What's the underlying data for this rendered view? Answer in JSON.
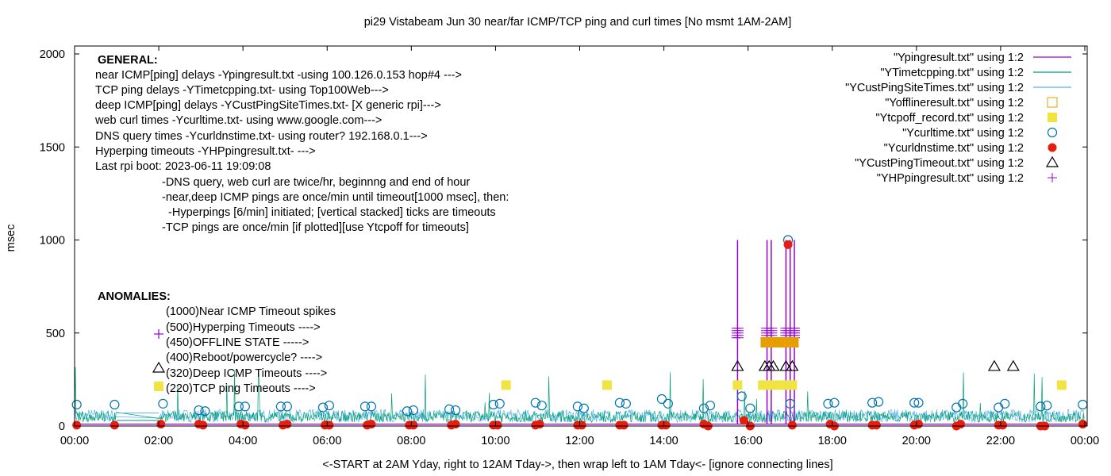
{
  "chart_data": {
    "type": "line",
    "title": "pi29 Vistabeam Jun 30  near/far ICMP/TCP ping and curl times [No msmt 1AM-2AM]",
    "xlabel": "<-START at 2AM Yday, right to 12AM Tday->, then wrap left to 1AM Tday<- [ignore connecting lines]",
    "ylabel": "msec",
    "xlim_hours": [
      0,
      24
    ],
    "ylim": [
      0,
      2000
    ],
    "x_ticks": [
      "00:00",
      "02:00",
      "04:00",
      "06:00",
      "08:00",
      "10:00",
      "12:00",
      "14:00",
      "16:00",
      "18:00",
      "20:00",
      "22:00",
      "00:00"
    ],
    "y_ticks": [
      0,
      500,
      1000,
      1500,
      2000
    ],
    "grid": false,
    "legend_position": "top-right",
    "legend": [
      {
        "label": "\"Ypingresult.txt\" using 1:2",
        "style": "line",
        "color": "#9400d3"
      },
      {
        "label": "\"YTimetcpping.txt\" using 1:2",
        "style": "line",
        "color": "#009e73"
      },
      {
        "label": "\"YCustPingSiteTimes.txt\" using 1:2",
        "style": "line",
        "color": "#56b4e9"
      },
      {
        "label": "\"Yofflineresult.txt\" using 1:2",
        "style": "open-square",
        "color": "#e69f00"
      },
      {
        "label": "\"Ytcpoff_record.txt\" using 1:2",
        "style": "filled-square",
        "color": "#f0e442"
      },
      {
        "label": "\"Ycurltime.txt\" using 1:2",
        "style": "open-circle",
        "color": "#0072b2"
      },
      {
        "label": "\"Ycurldnstime.txt\" using 1:2",
        "style": "filled-circle",
        "color": "#e51e10"
      },
      {
        "label": "\"YCustPingTimeout.txt\" using 1:2",
        "style": "open-triangle",
        "color": "#000000"
      },
      {
        "label": "\"YHPpingresult.txt\" using 1:2",
        "style": "plus",
        "color": "#9400d3"
      }
    ],
    "series": {
      "near_icmp_spikes_1000": [
        15.75,
        16.45,
        16.55,
        16.9,
        17.0,
        17.1
      ],
      "hyperping_timeouts_500": [
        15.72,
        15.78,
        16.42,
        16.5,
        16.58,
        16.88,
        16.95,
        17.08,
        17.12
      ],
      "offline_state_450": [
        16.42,
        16.5,
        16.6,
        16.72,
        16.9,
        17.0,
        17.08
      ],
      "deep_icmp_timeouts_320": [
        15.75,
        16.4,
        16.5,
        16.6,
        16.9,
        17.05,
        21.85,
        22.3
      ],
      "tcp_ping_timeouts_220": [
        10.25,
        12.65,
        15.75,
        16.35,
        16.55,
        16.75,
        16.95,
        17.05,
        23.45
      ],
      "curl_times": [
        {
          "x": 0.05,
          "y": 115
        },
        {
          "x": 0.95,
          "y": 115
        },
        {
          "x": 2.1,
          "y": 120
        },
        {
          "x": 2.95,
          "y": 85
        },
        {
          "x": 3.1,
          "y": 80
        },
        {
          "x": 3.9,
          "y": 105
        },
        {
          "x": 4.05,
          "y": 105
        },
        {
          "x": 4.9,
          "y": 105
        },
        {
          "x": 5.05,
          "y": 105
        },
        {
          "x": 5.9,
          "y": 100
        },
        {
          "x": 6.05,
          "y": 110
        },
        {
          "x": 6.9,
          "y": 105
        },
        {
          "x": 7.05,
          "y": 105
        },
        {
          "x": 7.9,
          "y": 80
        },
        {
          "x": 8.05,
          "y": 85
        },
        {
          "x": 8.9,
          "y": 90
        },
        {
          "x": 9.05,
          "y": 85
        },
        {
          "x": 9.95,
          "y": 115
        },
        {
          "x": 10.1,
          "y": 120
        },
        {
          "x": 10.95,
          "y": 125
        },
        {
          "x": 11.1,
          "y": 110
        },
        {
          "x": 11.95,
          "y": 105
        },
        {
          "x": 12.1,
          "y": 95
        },
        {
          "x": 12.95,
          "y": 125
        },
        {
          "x": 13.1,
          "y": 120
        },
        {
          "x": 13.95,
          "y": 145
        },
        {
          "x": 14.1,
          "y": 120
        },
        {
          "x": 14.95,
          "y": 95
        },
        {
          "x": 15.1,
          "y": 110
        },
        {
          "x": 15.85,
          "y": 160
        },
        {
          "x": 16.05,
          "y": 95
        },
        {
          "x": 17.0,
          "y": 120
        },
        {
          "x": 16.95,
          "y": 1000
        },
        {
          "x": 17.9,
          "y": 120
        },
        {
          "x": 18.05,
          "y": 125
        },
        {
          "x": 18.95,
          "y": 125
        },
        {
          "x": 19.1,
          "y": 130
        },
        {
          "x": 19.95,
          "y": 125
        },
        {
          "x": 20.05,
          "y": 125
        },
        {
          "x": 20.95,
          "y": 100
        },
        {
          "x": 21.1,
          "y": 120
        },
        {
          "x": 21.95,
          "y": 100
        },
        {
          "x": 22.1,
          "y": 120
        },
        {
          "x": 22.95,
          "y": 105
        },
        {
          "x": 23.1,
          "y": 110
        },
        {
          "x": 23.95,
          "y": 115
        }
      ],
      "dns_times": [
        {
          "x": 0.05,
          "y": 5
        },
        {
          "x": 0.95,
          "y": 5
        },
        {
          "x": 2.05,
          "y": 10
        },
        {
          "x": 2.95,
          "y": 10
        },
        {
          "x": 3.05,
          "y": 5
        },
        {
          "x": 3.95,
          "y": 10
        },
        {
          "x": 4.05,
          "y": 5
        },
        {
          "x": 4.95,
          "y": 5
        },
        {
          "x": 5.05,
          "y": 10
        },
        {
          "x": 5.95,
          "y": 5
        },
        {
          "x": 6.05,
          "y": 5
        },
        {
          "x": 6.95,
          "y": 5
        },
        {
          "x": 7.05,
          "y": 10
        },
        {
          "x": 7.95,
          "y": 5
        },
        {
          "x": 8.05,
          "y": 5
        },
        {
          "x": 8.95,
          "y": 5
        },
        {
          "x": 9.05,
          "y": 10
        },
        {
          "x": 9.95,
          "y": 5
        },
        {
          "x": 10.05,
          "y": 5
        },
        {
          "x": 10.95,
          "y": 5
        },
        {
          "x": 11.05,
          "y": 10
        },
        {
          "x": 11.95,
          "y": 5
        },
        {
          "x": 12.05,
          "y": 5
        },
        {
          "x": 12.95,
          "y": 5
        },
        {
          "x": 13.05,
          "y": 5
        },
        {
          "x": 13.95,
          "y": 5
        },
        {
          "x": 14.05,
          "y": 5
        },
        {
          "x": 14.95,
          "y": 10
        },
        {
          "x": 15.05,
          "y": 0
        },
        {
          "x": 15.9,
          "y": 30
        },
        {
          "x": 16.05,
          "y": 0
        },
        {
          "x": 16.95,
          "y": 975
        },
        {
          "x": 17.05,
          "y": 5
        },
        {
          "x": 17.95,
          "y": 10
        },
        {
          "x": 18.05,
          "y": 0
        },
        {
          "x": 18.95,
          "y": 5
        },
        {
          "x": 19.05,
          "y": 5
        },
        {
          "x": 19.95,
          "y": 5
        },
        {
          "x": 20.05,
          "y": 10
        },
        {
          "x": 20.95,
          "y": 0
        },
        {
          "x": 21.05,
          "y": 10
        },
        {
          "x": 21.95,
          "y": 5
        },
        {
          "x": 22.05,
          "y": 5
        },
        {
          "x": 22.95,
          "y": 0
        },
        {
          "x": 23.05,
          "y": 0
        },
        {
          "x": 23.95,
          "y": 10
        }
      ],
      "near_icmp_baseline_msec": 10,
      "tcp_ping_typical_msec_range": [
        20,
        80
      ],
      "deep_icmp_typical_msec_range": [
        20,
        90
      ]
    }
  },
  "annotations": {
    "general_heading": "GENERAL:",
    "general_lines": [
      "near ICMP[ping] delays -Ypingresult.txt -using 100.126.0.153 hop#4 --->",
      "TCP ping delays -YTimetcpping.txt- using Top100Web--->",
      "deep ICMP[ping] delays -YCustPingSiteTimes.txt- [X generic rpi]--->",
      "web curl times -Ycurltime.txt- using www.google.com--->",
      "DNS query times -Ycurldnstime.txt- using router? 192.168.0.1--->",
      "Hyperping timeouts -YHPpingresult.txt- --->",
      "Last rpi boot: 2023-06-11 19:09:08"
    ],
    "notes": [
      "-DNS query, web curl are twice/hr, beginnng and end of hour",
      "-near,deep ICMP pings are once/min until timeout[1000 msec], then:",
      "  -Hyperpings [6/min] initiated; [vertical stacked] ticks are timeouts",
      "-TCP pings are once/min [if plotted][use Ytcpoff for timeouts]"
    ],
    "anomalies_heading": "ANOMALIES:",
    "anomalies": [
      "(1000)Near ICMP Timeout spikes",
      "(500)Hyperping Timeouts ---->",
      "(450)OFFLINE STATE ----->",
      "(400)Reboot/powercycle? ---->",
      "(320)Deep ICMP Timeouts ---->",
      "(220)TCP ping Timeouts ---->"
    ]
  }
}
